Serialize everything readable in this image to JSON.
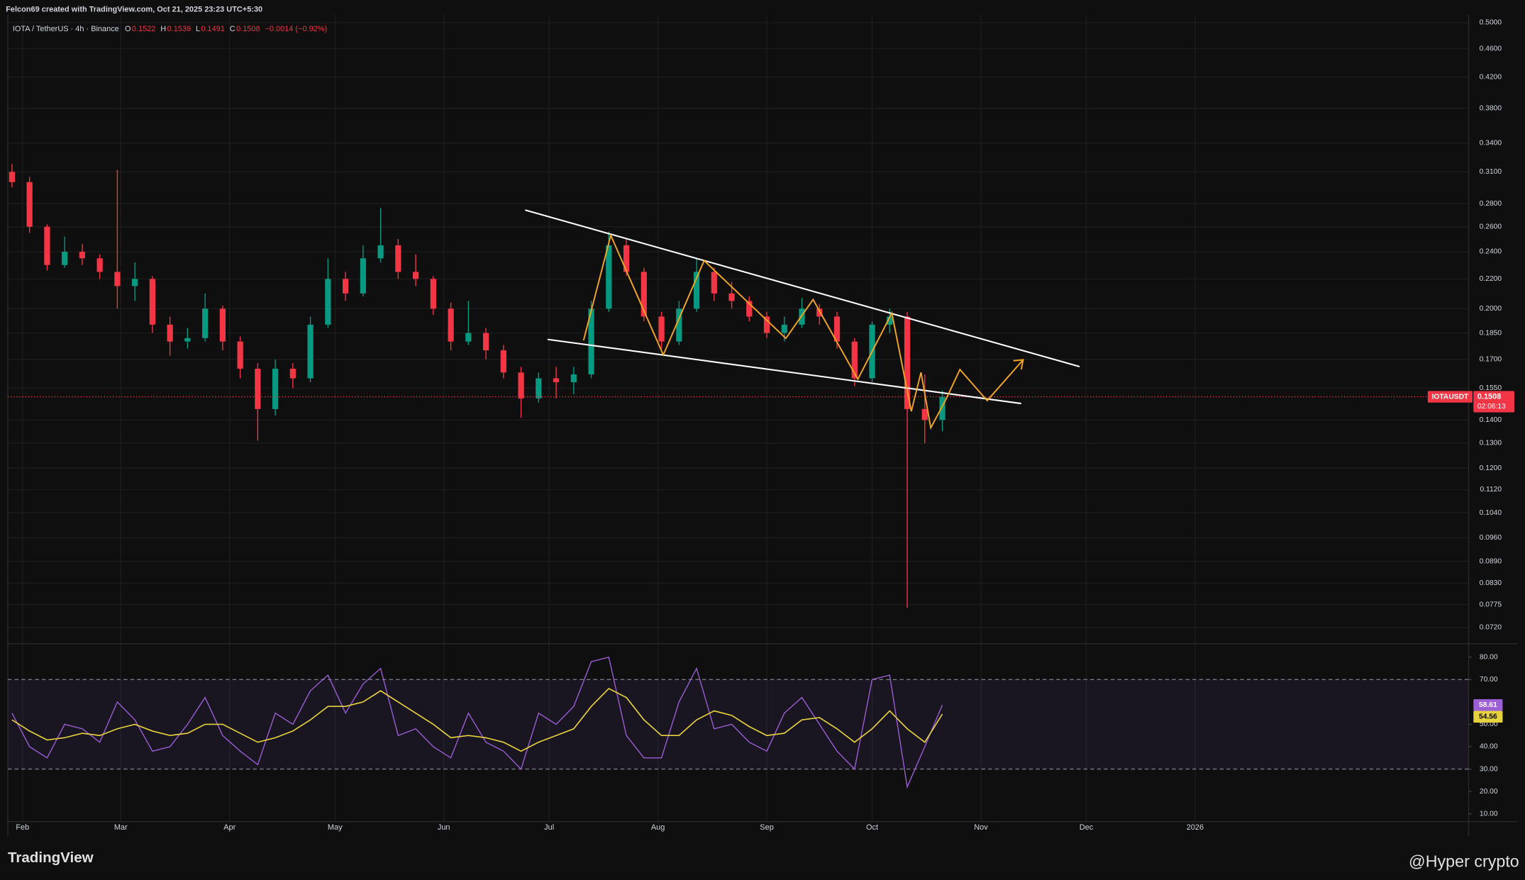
{
  "header": {
    "credit": "Felcon69 created with TradingView.com, Oct 21, 2025 23:23 UTC+5:30",
    "symbol": "IOTA / TetherUS · 4h · Binance",
    "ohlc_legend": [
      {
        "key": "O",
        "value": 0.1522
      },
      {
        "key": "H",
        "value": 0.1539
      },
      {
        "key": "L",
        "value": 0.1491
      },
      {
        "key": "C",
        "value": 0.1508
      }
    ],
    "change": "−0.0014 (−0.92%)"
  },
  "footer": {
    "brand": "TradingView",
    "watermark": "@Hyper crypto"
  },
  "chart_data": [
    {
      "type": "candlestick",
      "symbol_label": "IOTAUSDT",
      "countdown": "02:06:13",
      "log_scale": true,
      "grid": true,
      "up_color": "#089981",
      "down_color": "#f23645",
      "x": [
        28,
        33,
        38,
        43,
        48,
        53,
        58,
        63,
        68,
        73,
        78,
        83,
        88,
        93,
        98,
        103,
        108,
        113,
        118,
        123,
        128,
        133,
        138,
        143,
        148,
        153,
        158,
        163,
        168,
        173,
        178,
        183,
        188,
        193,
        198,
        203,
        208,
        213,
        218,
        223,
        228,
        233,
        238,
        243,
        248,
        253,
        258,
        263,
        268,
        273,
        278,
        283,
        288,
        293
      ],
      "ohlc": [
        [
          0.31,
          0.318,
          0.295,
          0.3
        ],
        [
          0.3,
          0.305,
          0.255,
          0.26
        ],
        [
          0.26,
          0.262,
          0.226,
          0.23
        ],
        [
          0.23,
          0.252,
          0.228,
          0.24
        ],
        [
          0.24,
          0.246,
          0.23,
          0.235
        ],
        [
          0.235,
          0.238,
          0.22,
          0.225
        ],
        [
          0.225,
          0.312,
          0.2,
          0.215
        ],
        [
          0.215,
          0.232,
          0.205,
          0.22
        ],
        [
          0.22,
          0.222,
          0.185,
          0.19
        ],
        [
          0.19,
          0.195,
          0.172,
          0.18
        ],
        [
          0.18,
          0.188,
          0.176,
          0.182
        ],
        [
          0.182,
          0.21,
          0.18,
          0.2
        ],
        [
          0.2,
          0.202,
          0.175,
          0.18
        ],
        [
          0.18,
          0.183,
          0.16,
          0.165
        ],
        [
          0.165,
          0.168,
          0.131,
          0.145
        ],
        [
          0.145,
          0.17,
          0.142,
          0.165
        ],
        [
          0.165,
          0.168,
          0.155,
          0.16
        ],
        [
          0.16,
          0.195,
          0.158,
          0.19
        ],
        [
          0.19,
          0.235,
          0.188,
          0.22
        ],
        [
          0.22,
          0.225,
          0.205,
          0.21
        ],
        [
          0.21,
          0.245,
          0.208,
          0.235
        ],
        [
          0.235,
          0.276,
          0.232,
          0.245
        ],
        [
          0.245,
          0.25,
          0.22,
          0.225
        ],
        [
          0.225,
          0.238,
          0.215,
          0.22
        ],
        [
          0.22,
          0.222,
          0.196,
          0.2
        ],
        [
          0.2,
          0.204,
          0.175,
          0.18
        ],
        [
          0.18,
          0.205,
          0.178,
          0.185
        ],
        [
          0.185,
          0.188,
          0.17,
          0.175
        ],
        [
          0.175,
          0.178,
          0.16,
          0.163
        ],
        [
          0.163,
          0.166,
          0.141,
          0.15
        ],
        [
          0.15,
          0.163,
          0.148,
          0.16
        ],
        [
          0.16,
          0.166,
          0.15,
          0.158
        ],
        [
          0.158,
          0.166,
          0.152,
          0.162
        ],
        [
          0.162,
          0.205,
          0.16,
          0.2
        ],
        [
          0.2,
          0.256,
          0.198,
          0.245
        ],
        [
          0.245,
          0.25,
          0.222,
          0.225
        ],
        [
          0.225,
          0.228,
          0.192,
          0.195
        ],
        [
          0.195,
          0.198,
          0.176,
          0.18
        ],
        [
          0.18,
          0.205,
          0.178,
          0.2
        ],
        [
          0.2,
          0.235,
          0.198,
          0.225
        ],
        [
          0.225,
          0.228,
          0.205,
          0.21
        ],
        [
          0.21,
          0.218,
          0.2,
          0.205
        ],
        [
          0.205,
          0.208,
          0.192,
          0.195
        ],
        [
          0.195,
          0.198,
          0.182,
          0.185
        ],
        [
          0.185,
          0.195,
          0.18,
          0.19
        ],
        [
          0.19,
          0.207,
          0.188,
          0.2
        ],
        [
          0.2,
          0.203,
          0.19,
          0.195
        ],
        [
          0.195,
          0.198,
          0.176,
          0.18
        ],
        [
          0.18,
          0.182,
          0.156,
          0.16
        ],
        [
          0.16,
          0.192,
          0.158,
          0.19
        ],
        [
          0.19,
          0.2,
          0.185,
          0.195
        ],
        [
          0.195,
          0.198,
          0.0767,
          0.145
        ],
        [
          0.145,
          0.162,
          0.13,
          0.14
        ],
        [
          0.14,
          0.154,
          0.135,
          0.1508
        ]
      ],
      "xlim": [
        26.8,
        442.9
      ],
      "ylim": [
        0.0688,
        0.513
      ],
      "xticks": [
        {
          "value": 31,
          "label": "Feb"
        },
        {
          "value": 59,
          "label": "Mar"
        },
        {
          "value": 90,
          "label": "Apr"
        },
        {
          "value": 120,
          "label": "May"
        },
        {
          "value": 151,
          "label": "Jun"
        },
        {
          "value": 181,
          "label": "Jul"
        },
        {
          "value": 212,
          "label": "Aug"
        },
        {
          "value": 243,
          "label": "Sep"
        },
        {
          "value": 273,
          "label": "Oct"
        },
        {
          "value": 304,
          "label": "Nov"
        },
        {
          "value": 334,
          "label": "Dec"
        },
        {
          "value": 365,
          "label": "2026"
        }
      ],
      "yticks": [
        {
          "value": 0.5,
          "label": "0.5000"
        },
        {
          "value": 0.46,
          "label": "0.4600"
        },
        {
          "value": 0.42,
          "label": "0.4200"
        },
        {
          "value": 0.38,
          "label": "0.3800"
        },
        {
          "value": 0.34,
          "label": "0.3400"
        },
        {
          "value": 0.31,
          "label": "0.3100"
        },
        {
          "value": 0.28,
          "label": "0.2800"
        },
        {
          "value": 0.26,
          "label": "0.2600"
        },
        {
          "value": 0.24,
          "label": "0.2400"
        },
        {
          "value": 0.22,
          "label": "0.2200"
        },
        {
          "value": 0.2,
          "label": "0.2000"
        },
        {
          "value": 0.185,
          "label": "0.1850"
        },
        {
          "value": 0.17,
          "label": "0.1700"
        },
        {
          "value": 0.155,
          "label": "0.1550"
        },
        {
          "value": 0.14,
          "label": "0.1400"
        },
        {
          "value": 0.13,
          "label": "0.1300"
        },
        {
          "value": 0.12,
          "label": "0.1200"
        },
        {
          "value": 0.112,
          "label": "0.1120"
        },
        {
          "value": 0.104,
          "label": "0.1040"
        },
        {
          "value": 0.096,
          "label": "0.0960"
        },
        {
          "value": 0.089,
          "label": "0.0890"
        },
        {
          "value": 0.083,
          "label": "0.0830"
        },
        {
          "value": 0.0775,
          "label": "0.0775"
        },
        {
          "value": 0.072,
          "label": "0.0720"
        }
      ]
    },
    {
      "type": "line",
      "band": [
        30,
        70
      ],
      "band_color": "#7e57c2",
      "x": [
        28,
        33,
        38,
        43,
        48,
        53,
        58,
        63,
        68,
        73,
        78,
        83,
        88,
        93,
        98,
        103,
        108,
        113,
        118,
        123,
        128,
        133,
        138,
        143,
        148,
        153,
        158,
        163,
        168,
        173,
        178,
        183,
        188,
        193,
        198,
        203,
        208,
        213,
        218,
        223,
        228,
        233,
        238,
        243,
        248,
        253,
        258,
        263,
        268,
        273,
        278,
        283,
        288,
        293
      ],
      "series": [
        {
          "color": "#9c5fd6",
          "values": [
            55,
            40,
            35,
            50,
            48,
            42,
            60,
            52,
            38,
            40,
            50,
            62,
            45,
            38,
            32,
            55,
            50,
            65,
            72,
            55,
            68,
            75,
            45,
            48,
            40,
            35,
            55,
            42,
            38,
            30,
            55,
            50,
            58,
            78,
            80,
            45,
            35,
            35,
            60,
            75,
            48,
            50,
            42,
            38,
            55,
            62,
            50,
            38,
            30,
            70,
            72,
            22,
            40,
            58.61
          ]
        },
        {
          "color": "#e6d23c",
          "values": [
            52,
            47,
            43,
            44,
            46,
            45,
            48,
            50,
            47,
            45,
            46,
            50,
            50,
            46,
            42,
            44,
            47,
            52,
            58,
            58,
            60,
            65,
            60,
            55,
            50,
            44,
            45,
            44,
            42,
            38,
            42,
            45,
            48,
            58,
            66,
            62,
            52,
            45,
            45,
            52,
            56,
            54,
            49,
            45,
            46,
            52,
            53,
            48,
            42,
            48,
            56,
            48,
            42,
            54.56
          ]
        }
      ],
      "xlim": [
        26.8,
        442.9
      ],
      "ylim": [
        6.5,
        85.6
      ],
      "yticks": [
        {
          "value": 80,
          "label": "80.00"
        },
        {
          "value": 70,
          "label": "70.00"
        },
        {
          "value": 50,
          "label": "50.00"
        },
        {
          "value": 40,
          "label": "40.00"
        },
        {
          "value": 30,
          "label": "30.00"
        },
        {
          "value": 20,
          "label": "20.00"
        },
        {
          "value": 10,
          "label": "10.00"
        }
      ]
    }
  ]
}
